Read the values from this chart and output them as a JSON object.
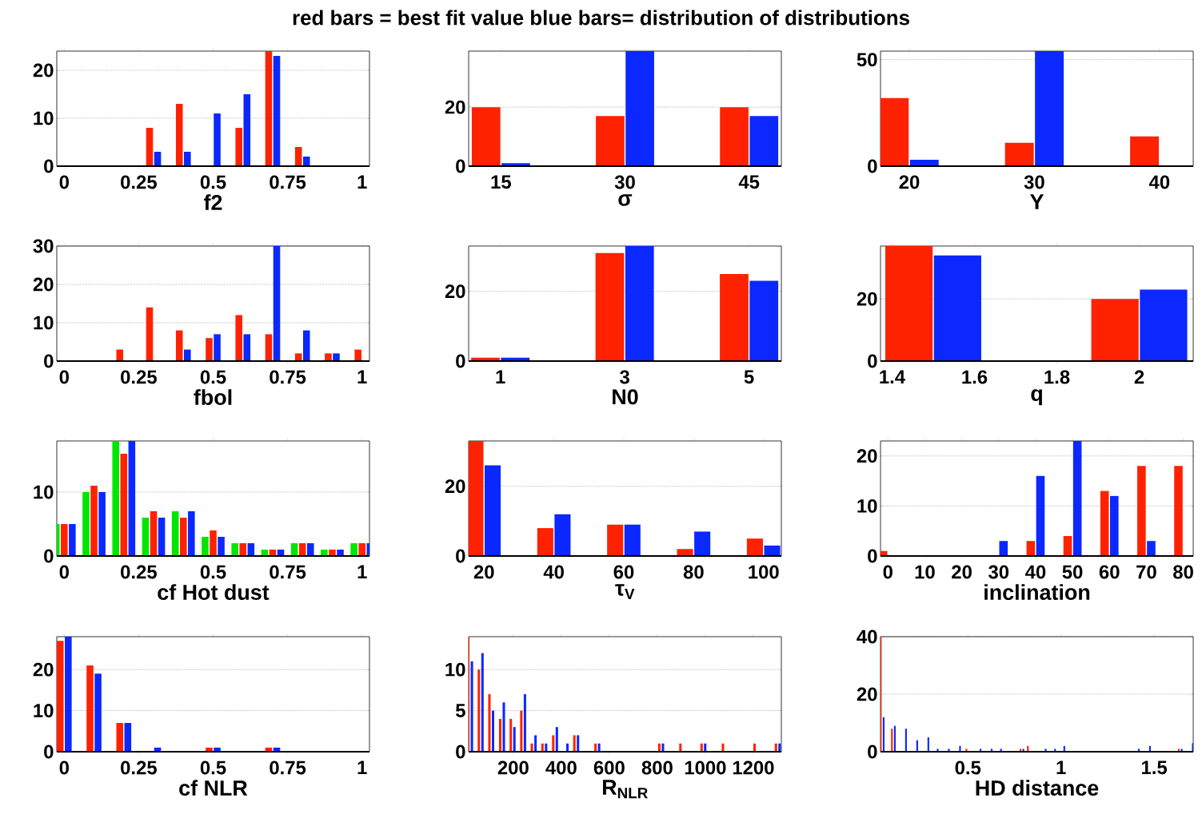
{
  "chart_data": [
    {
      "type": "bar",
      "title": "red bars = best fit value     blue bars= distribution of distributions",
      "xlabel": "f2",
      "x": [
        0,
        0.1,
        0.2,
        0.3,
        0.4,
        0.5,
        0.6,
        0.7,
        0.8,
        0.9,
        1.0
      ],
      "xlim": [
        -0.025,
        1.025
      ],
      "ylim": [
        0,
        24
      ],
      "xticks": [
        0,
        0.25,
        0.5,
        0.75,
        1
      ],
      "yticks": [
        0,
        10,
        20
      ],
      "grid": "y",
      "series": [
        {
          "color": "#ff2200",
          "values": [
            0,
            0,
            0,
            8,
            13,
            0,
            8,
            24,
            4,
            0,
            0
          ]
        },
        {
          "color": "#0a28ff",
          "values": [
            0,
            0,
            0,
            3,
            3,
            11,
            15,
            23,
            2,
            0,
            0
          ]
        }
      ]
    },
    {
      "type": "bar",
      "xlabel": "σ",
      "x": [
        15,
        30,
        45
      ],
      "xlim": [
        11.1,
        48.9
      ],
      "ylim": [
        0,
        39
      ],
      "xticks": [
        15,
        30,
        45
      ],
      "yticks": [
        0,
        20
      ],
      "grid": "y",
      "series": [
        {
          "color": "#ff2200",
          "values": [
            20,
            17,
            20
          ]
        },
        {
          "color": "#0a28ff",
          "values": [
            1,
            39,
            17
          ]
        }
      ]
    },
    {
      "type": "bar",
      "xlabel": "Y",
      "x": [
        20,
        30,
        40
      ],
      "xlim": [
        17.7,
        42.7
      ],
      "ylim": [
        0,
        54
      ],
      "xticks": [
        20,
        30,
        40
      ],
      "yticks": [
        0,
        50
      ],
      "grid": "y",
      "series": [
        {
          "color": "#ff2200",
          "values": [
            32,
            11,
            14
          ]
        },
        {
          "color": "#0a28ff",
          "values": [
            3,
            54,
            0
          ]
        }
      ]
    },
    {
      "type": "bar",
      "xlabel": "fbol",
      "x": [
        0,
        0.1,
        0.2,
        0.3,
        0.4,
        0.5,
        0.6,
        0.7,
        0.8,
        0.9,
        1.0
      ],
      "xlim": [
        -0.025,
        1.025
      ],
      "ylim": [
        0,
        30
      ],
      "xticks": [
        0,
        0.25,
        0.5,
        0.75,
        1
      ],
      "yticks": [
        0,
        10,
        20,
        30
      ],
      "grid": "y",
      "series": [
        {
          "color": "#ff2200",
          "values": [
            0,
            0,
            3,
            14,
            8,
            6,
            12,
            7,
            2,
            2,
            3
          ]
        },
        {
          "color": "#0a28ff",
          "values": [
            0,
            0,
            0,
            0,
            3,
            7,
            7,
            30,
            8,
            2,
            0
          ]
        }
      ]
    },
    {
      "type": "bar",
      "xlabel": "N0",
      "x": [
        1,
        3,
        5
      ],
      "xlim": [
        0.49,
        5.52
      ],
      "ylim": [
        0,
        33
      ],
      "xticks": [
        1,
        3,
        5
      ],
      "yticks": [
        0,
        20
      ],
      "grid": "y",
      "series": [
        {
          "color": "#ff2200",
          "values": [
            1,
            31,
            25
          ]
        },
        {
          "color": "#0a28ff",
          "values": [
            1,
            33,
            23
          ]
        }
      ]
    },
    {
      "type": "bar",
      "xlabel": "q",
      "x": [
        1.5,
        2.0
      ],
      "xlim": [
        1.372,
        2.131
      ],
      "ylim": [
        0,
        37
      ],
      "xticks": [
        1.4,
        1.6,
        1.8,
        2
      ],
      "yticks": [
        0,
        20
      ],
      "grid": "y",
      "series": [
        {
          "color": "#ff2200",
          "values": [
            37,
            20
          ]
        },
        {
          "color": "#0a28ff",
          "values": [
            34,
            23
          ]
        }
      ]
    },
    {
      "type": "bar",
      "xlabel": "cf Hot dust",
      "x": [
        0,
        0.1,
        0.2,
        0.3,
        0.4,
        0.5,
        0.6,
        0.7,
        0.8,
        0.9,
        1.0
      ],
      "xlim": [
        -0.025,
        1.025
      ],
      "ylim": [
        0,
        18
      ],
      "xticks": [
        0,
        0.25,
        0.5,
        0.75,
        1
      ],
      "yticks": [
        0,
        10
      ],
      "grid": "y",
      "series": [
        {
          "color": "#00e600",
          "values": [
            5,
            10,
            18,
            6,
            7,
            3,
            2,
            1,
            2,
            1,
            2
          ]
        },
        {
          "color": "#ff2200",
          "values": [
            5,
            11,
            16,
            7,
            6,
            4,
            2,
            1,
            2,
            1,
            2
          ]
        },
        {
          "color": "#0a28ff",
          "values": [
            5,
            10,
            18,
            6,
            7,
            3,
            2,
            1,
            2,
            1,
            2
          ]
        }
      ]
    },
    {
      "type": "bar",
      "xlabel": "τ$_{V}$",
      "x": [
        20,
        40,
        60,
        80,
        100
      ],
      "xlim": [
        15.6,
        105.1
      ],
      "ylim": [
        0,
        33
      ],
      "xticks": [
        20,
        40,
        60,
        80,
        100
      ],
      "yticks": [
        0,
        20
      ],
      "grid": "y",
      "series": [
        {
          "color": "#ff2200",
          "values": [
            33,
            8,
            9,
            2,
            5
          ]
        },
        {
          "color": "#0a28ff",
          "values": [
            26,
            12,
            9,
            7,
            3
          ]
        }
      ]
    },
    {
      "type": "bar",
      "xlabel": "inclination",
      "x": [
        0,
        10,
        20,
        30,
        40,
        50,
        60,
        70,
        80
      ],
      "xlim": [
        -2,
        82.7
      ],
      "ylim": [
        0,
        23
      ],
      "xticks": [
        0,
        10,
        20,
        30,
        40,
        50,
        60,
        70,
        80
      ],
      "yticks": [
        0,
        10,
        20
      ],
      "grid": "y",
      "series": [
        {
          "color": "#ff2200",
          "values": [
            1,
            0,
            0,
            0,
            3,
            4,
            13,
            18,
            18
          ]
        },
        {
          "color": "#0a28ff",
          "values": [
            0,
            0,
            0,
            3,
            16,
            23,
            12,
            3,
            0
          ]
        }
      ]
    },
    {
      "type": "bar",
      "xlabel": "cf NLR",
      "x": [
        0,
        0.1,
        0.2,
        0.3,
        0.4,
        0.5,
        0.6,
        0.7,
        0.8,
        0.9,
        1.0
      ],
      "xlim": [
        -0.025,
        1.025
      ],
      "ylim": [
        0,
        28
      ],
      "xticks": [
        0,
        0.25,
        0.5,
        0.75,
        1
      ],
      "yticks": [
        0,
        10,
        20
      ],
      "grid": "y",
      "series": [
        {
          "color": "#ff2200",
          "values": [
            27,
            21,
            7,
            0,
            0,
            1,
            0,
            1,
            0,
            0,
            0
          ]
        },
        {
          "color": "#0a28ff",
          "values": [
            28,
            19,
            7,
            1,
            0,
            1,
            0,
            1,
            0,
            0,
            0
          ]
        }
      ]
    },
    {
      "type": "bar",
      "xlabel": "R$_{NLR}$",
      "x": [
        20,
        64,
        108,
        153,
        197,
        241,
        285,
        329,
        374,
        418,
        462,
        506,
        550,
        595,
        639,
        683,
        727,
        771,
        816,
        860,
        904,
        948,
        992,
        1037,
        1081,
        1125,
        1169,
        1213,
        1258,
        1302
      ],
      "xlim": [
        14,
        1317
      ],
      "ylim": [
        0,
        14
      ],
      "xticks": [
        200,
        400,
        600,
        800,
        1000,
        1200
      ],
      "yticks": [
        0,
        5,
        10
      ],
      "grid": "y",
      "series": [
        {
          "color": "#ff2200",
          "values": [
            14,
            10,
            7,
            4,
            4,
            5,
            1,
            1,
            2,
            0,
            2,
            0,
            1,
            0,
            0,
            0,
            0,
            0,
            1,
            0,
            1,
            0,
            1,
            0,
            1,
            0,
            0,
            1,
            0,
            1
          ]
        },
        {
          "color": "#0a28ff",
          "values": [
            11,
            12,
            5,
            6,
            3,
            7,
            2,
            1,
            3,
            1,
            2,
            0,
            1,
            0,
            0,
            0,
            0,
            0,
            1,
            0,
            0,
            0,
            1,
            0,
            0,
            0,
            0,
            0,
            0,
            1
          ]
        }
      ]
    },
    {
      "type": "bar",
      "xlabel": "HD distance",
      "x": [
        0.04,
        0.1,
        0.16,
        0.22,
        0.28,
        0.33,
        0.39,
        0.45,
        0.5,
        0.56,
        0.62,
        0.67,
        0.79,
        0.83,
        0.91,
        0.96,
        1.01,
        1.41,
        1.47,
        1.64,
        1.7
      ],
      "xlim": [
        0.031,
        1.71
      ],
      "ylim": [
        0,
        40
      ],
      "xticks": [
        0.5,
        1,
        1.5
      ],
      "yticks": [
        0,
        20,
        40
      ],
      "grid": "y",
      "series": [
        {
          "color": "#ff2200",
          "values": [
            40,
            8,
            0,
            0,
            0,
            0,
            0,
            0,
            1,
            0,
            0,
            0,
            1,
            2,
            0,
            0,
            0,
            0,
            0,
            1,
            0
          ]
        },
        {
          "color": "#0a28ff",
          "values": [
            12,
            9,
            8,
            4,
            5,
            1,
            1,
            2,
            0,
            1,
            1,
            1,
            1,
            0,
            1,
            1,
            2,
            1,
            2,
            1,
            3
          ]
        }
      ]
    }
  ]
}
